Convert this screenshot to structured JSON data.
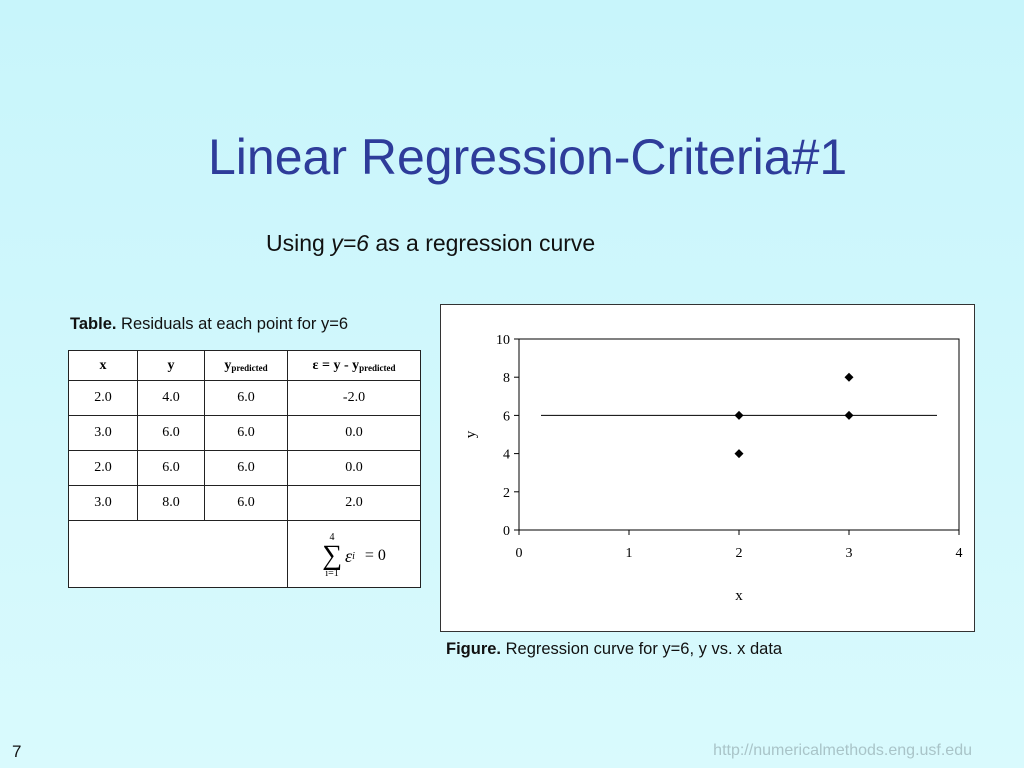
{
  "slide": {
    "title": "Linear Regression-Criteria#1",
    "subtitle_pre": "Using ",
    "subtitle_eq": "y=6",
    "subtitle_post": " as a regression curve",
    "page_number": "7",
    "footer_url": "http://numericalmethods.eng.usf.edu"
  },
  "table": {
    "caption_bold": "Table.",
    "caption_text": " Residuals at each point for y=6",
    "headers": {
      "x": "x",
      "y": "y",
      "ypred_main": "y",
      "ypred_sub": "predicted",
      "eps_main": "ε = y - y",
      "eps_sub": "predicted"
    },
    "rows": [
      {
        "x": "2.0",
        "y": "4.0",
        "ypred": "6.0",
        "eps": "-2.0"
      },
      {
        "x": "3.0",
        "y": "6.0",
        "ypred": "6.0",
        "eps": "0.0"
      },
      {
        "x": "2.0",
        "y": "6.0",
        "ypred": "6.0",
        "eps": "0.0"
      },
      {
        "x": "3.0",
        "y": "8.0",
        "ypred": "6.0",
        "eps": "2.0"
      }
    ],
    "sum": {
      "upper": "4",
      "symbol": "∑",
      "lower": "i=1",
      "eps": "ε",
      "eps_sub": "i",
      "equals": "= 0"
    }
  },
  "figure": {
    "caption_bold": "Figure.",
    "caption_text": " Regression curve for y=6, y vs. x data"
  },
  "chart_data": {
    "type": "scatter",
    "xlabel": "x",
    "ylabel": "y",
    "xlim": [
      0,
      4
    ],
    "ylim": [
      0,
      10
    ],
    "xticks": [
      0,
      1,
      2,
      3,
      4
    ],
    "yticks": [
      0,
      2,
      4,
      6,
      8,
      10
    ],
    "points": [
      {
        "x": 2,
        "y": 4
      },
      {
        "x": 3,
        "y": 6
      },
      {
        "x": 2,
        "y": 6
      },
      {
        "x": 3,
        "y": 8
      }
    ],
    "regression_line": {
      "y": 6,
      "x_start": 0.2,
      "x_end": 3.8
    },
    "grid": false,
    "legend": "none"
  }
}
